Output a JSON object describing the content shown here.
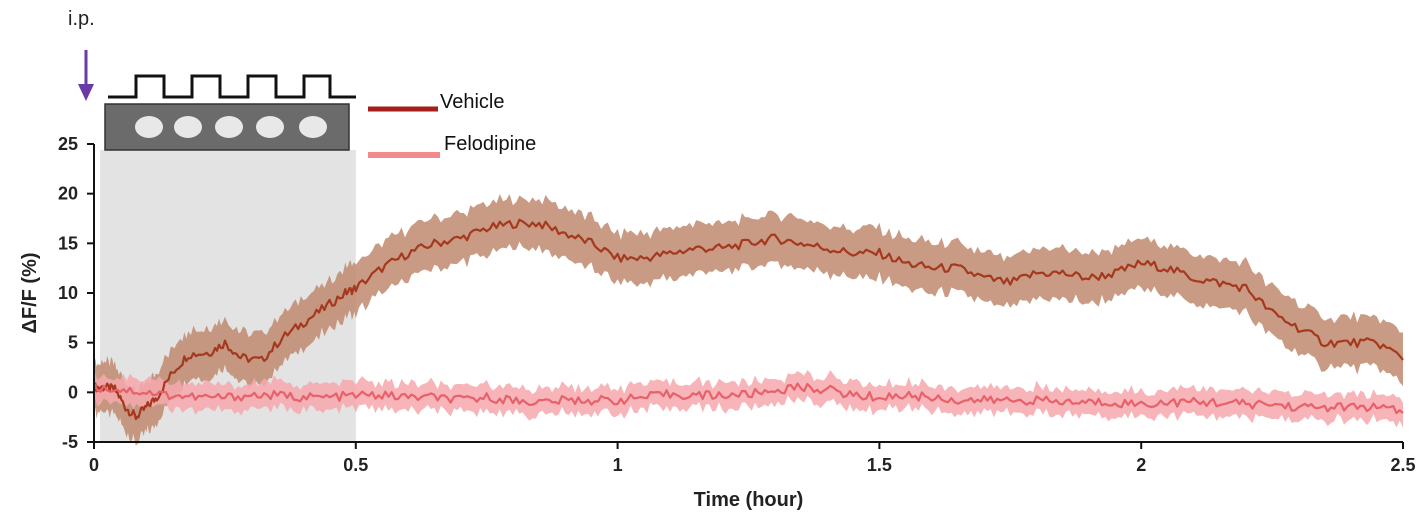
{
  "chart_data": {
    "type": "line",
    "xlabel": "Time (hour)",
    "ylabel": "ΔF/F (%)",
    "xlim": [
      0,
      2.5
    ],
    "ylim": [
      -5,
      25
    ],
    "x_ticks": [
      "0",
      "0.5",
      "1",
      "1.5",
      "2",
      "2.5"
    ],
    "y_ticks": [
      "25",
      "20",
      "15",
      "10",
      "5",
      "0",
      "-5"
    ],
    "shaded_interval": [
      0,
      0.5
    ],
    "annotation": "i.p.",
    "legend_position": "top",
    "series": [
      {
        "name": "Vehicle",
        "color": "#a5391f",
        "band_color": "#c08a6e",
        "band_half_width": 2.5,
        "points": [
          [
            0,
            0.5
          ],
          [
            0.02,
            0.5
          ],
          [
            0.04,
            0.3
          ],
          [
            0.06,
            -1.5
          ],
          [
            0.08,
            -2.5
          ],
          [
            0.1,
            -1.5
          ],
          [
            0.12,
            -0.5
          ],
          [
            0.15,
            2
          ],
          [
            0.18,
            3.8
          ],
          [
            0.22,
            4
          ],
          [
            0.25,
            5
          ],
          [
            0.28,
            3.5
          ],
          [
            0.32,
            3.2
          ],
          [
            0.36,
            5.5
          ],
          [
            0.4,
            7
          ],
          [
            0.44,
            8.5
          ],
          [
            0.48,
            10
          ],
          [
            0.5,
            10.5
          ],
          [
            0.55,
            12.5
          ],
          [
            0.6,
            14
          ],
          [
            0.65,
            15
          ],
          [
            0.7,
            15.5
          ],
          [
            0.75,
            16.5
          ],
          [
            0.8,
            17
          ],
          [
            0.85,
            17
          ],
          [
            0.9,
            16
          ],
          [
            0.95,
            15
          ],
          [
            1,
            13.5
          ],
          [
            1.05,
            13.5
          ],
          [
            1.1,
            14
          ],
          [
            1.15,
            14.5
          ],
          [
            1.2,
            14.5
          ],
          [
            1.25,
            15
          ],
          [
            1.3,
            15.5
          ],
          [
            1.35,
            15
          ],
          [
            1.4,
            14.5
          ],
          [
            1.45,
            14
          ],
          [
            1.5,
            14
          ],
          [
            1.55,
            13
          ],
          [
            1.6,
            12.5
          ],
          [
            1.65,
            12.5
          ],
          [
            1.7,
            11.5
          ],
          [
            1.75,
            11
          ],
          [
            1.8,
            12
          ],
          [
            1.85,
            12
          ],
          [
            1.9,
            11.5
          ],
          [
            1.95,
            12
          ],
          [
            2,
            13
          ],
          [
            2.05,
            12.5
          ],
          [
            2.1,
            11.5
          ],
          [
            2.15,
            11
          ],
          [
            2.2,
            10.5
          ],
          [
            2.25,
            8
          ],
          [
            2.3,
            6.5
          ],
          [
            2.35,
            5
          ],
          [
            2.4,
            5
          ],
          [
            2.45,
            5
          ],
          [
            2.5,
            3.5
          ]
        ]
      },
      {
        "name": "Felodipine",
        "color": "#e8606a",
        "band_color": "#f6a8ad",
        "band_half_width": 1.3,
        "points": [
          [
            0,
            0.5
          ],
          [
            0.05,
            0.3
          ],
          [
            0.1,
            0
          ],
          [
            0.15,
            -0.3
          ],
          [
            0.2,
            -0.5
          ],
          [
            0.25,
            -0.5
          ],
          [
            0.3,
            -0.3
          ],
          [
            0.35,
            -0.3
          ],
          [
            0.4,
            -0.5
          ],
          [
            0.45,
            -0.5
          ],
          [
            0.5,
            -0.3
          ],
          [
            0.55,
            -0.3
          ],
          [
            0.6,
            -0.5
          ],
          [
            0.65,
            -0.5
          ],
          [
            0.7,
            -0.8
          ],
          [
            0.75,
            -0.5
          ],
          [
            0.8,
            -0.8
          ],
          [
            0.85,
            -1
          ],
          [
            0.9,
            -0.8
          ],
          [
            0.95,
            -0.8
          ],
          [
            1,
            -0.8
          ],
          [
            1.05,
            -0.5
          ],
          [
            1.1,
            -0.2
          ],
          [
            1.15,
            -0.3
          ],
          [
            1.2,
            -0.3
          ],
          [
            1.25,
            -0.2
          ],
          [
            1.3,
            0.2
          ],
          [
            1.35,
            0.5
          ],
          [
            1.4,
            0.3
          ],
          [
            1.45,
            -0.3
          ],
          [
            1.5,
            -0.5
          ],
          [
            1.55,
            -0.3
          ],
          [
            1.6,
            -0.5
          ],
          [
            1.65,
            -0.8
          ],
          [
            1.7,
            -0.8
          ],
          [
            1.75,
            -0.8
          ],
          [
            1.8,
            -0.8
          ],
          [
            1.85,
            -1
          ],
          [
            1.9,
            -1
          ],
          [
            1.95,
            -1
          ],
          [
            2,
            -1.2
          ],
          [
            2.05,
            -1
          ],
          [
            2.1,
            -1
          ],
          [
            2.15,
            -1
          ],
          [
            2.2,
            -1.2
          ],
          [
            2.25,
            -1.2
          ],
          [
            2.3,
            -1.5
          ],
          [
            2.35,
            -1.5
          ],
          [
            2.4,
            -1.5
          ],
          [
            2.45,
            -1.5
          ],
          [
            2.5,
            -2
          ]
        ]
      }
    ]
  }
}
